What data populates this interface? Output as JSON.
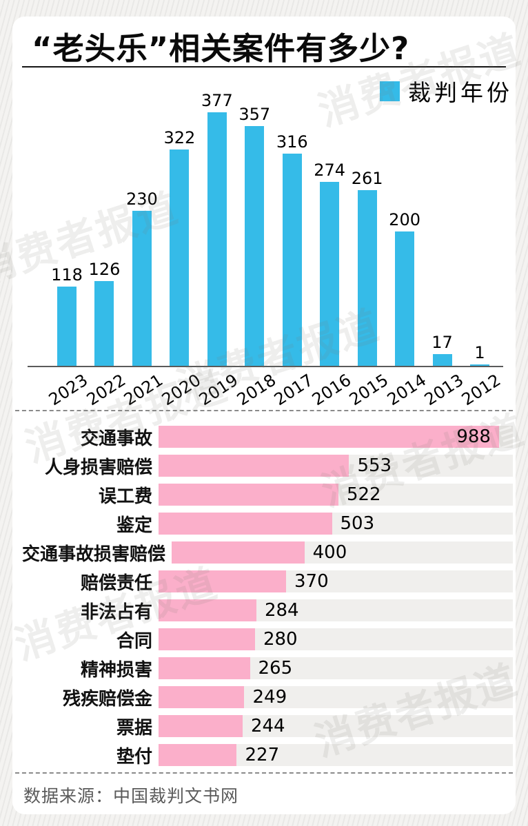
{
  "page": {
    "title": "“老头乐”相关案件有多少?",
    "footer": "数据来源：中国裁判文书网",
    "watermark": "消费者报道"
  },
  "colors": {
    "bar_blue": "#35bbe8",
    "bar_pink": "#fbafca",
    "track_gray": "#f0efed"
  },
  "chart_data": [
    {
      "type": "bar",
      "title": "",
      "legend": [
        {
          "label": "裁判年份",
          "color": "#35bbe8"
        }
      ],
      "legend_position": "top-right",
      "categories": [
        "2023",
        "2022",
        "2021",
        "2020",
        "2019",
        "2018",
        "2017",
        "2016",
        "2015",
        "2014",
        "2013",
        "2012"
      ],
      "values": [
        118,
        126,
        230,
        322,
        377,
        357,
        316,
        274,
        261,
        200,
        17,
        1
      ],
      "xlabel": "裁判年份",
      "ylabel": "",
      "ylim": [
        0,
        400
      ],
      "grid": false,
      "bar_labels": true
    },
    {
      "type": "bar",
      "orientation": "horizontal",
      "categories": [
        "交通事故",
        "人身损害赔偿",
        "误工费",
        "鉴定",
        "交通事故损害赔偿",
        "赔偿责任",
        "非法占有",
        "合同",
        "精神损害",
        "残疾赔偿金",
        "票据",
        "垫付"
      ],
      "values": [
        988,
        553,
        522,
        503,
        400,
        370,
        284,
        280,
        265,
        249,
        244,
        227
      ],
      "xlim": [
        0,
        1030
      ],
      "grid": false,
      "bar_labels": true
    }
  ]
}
